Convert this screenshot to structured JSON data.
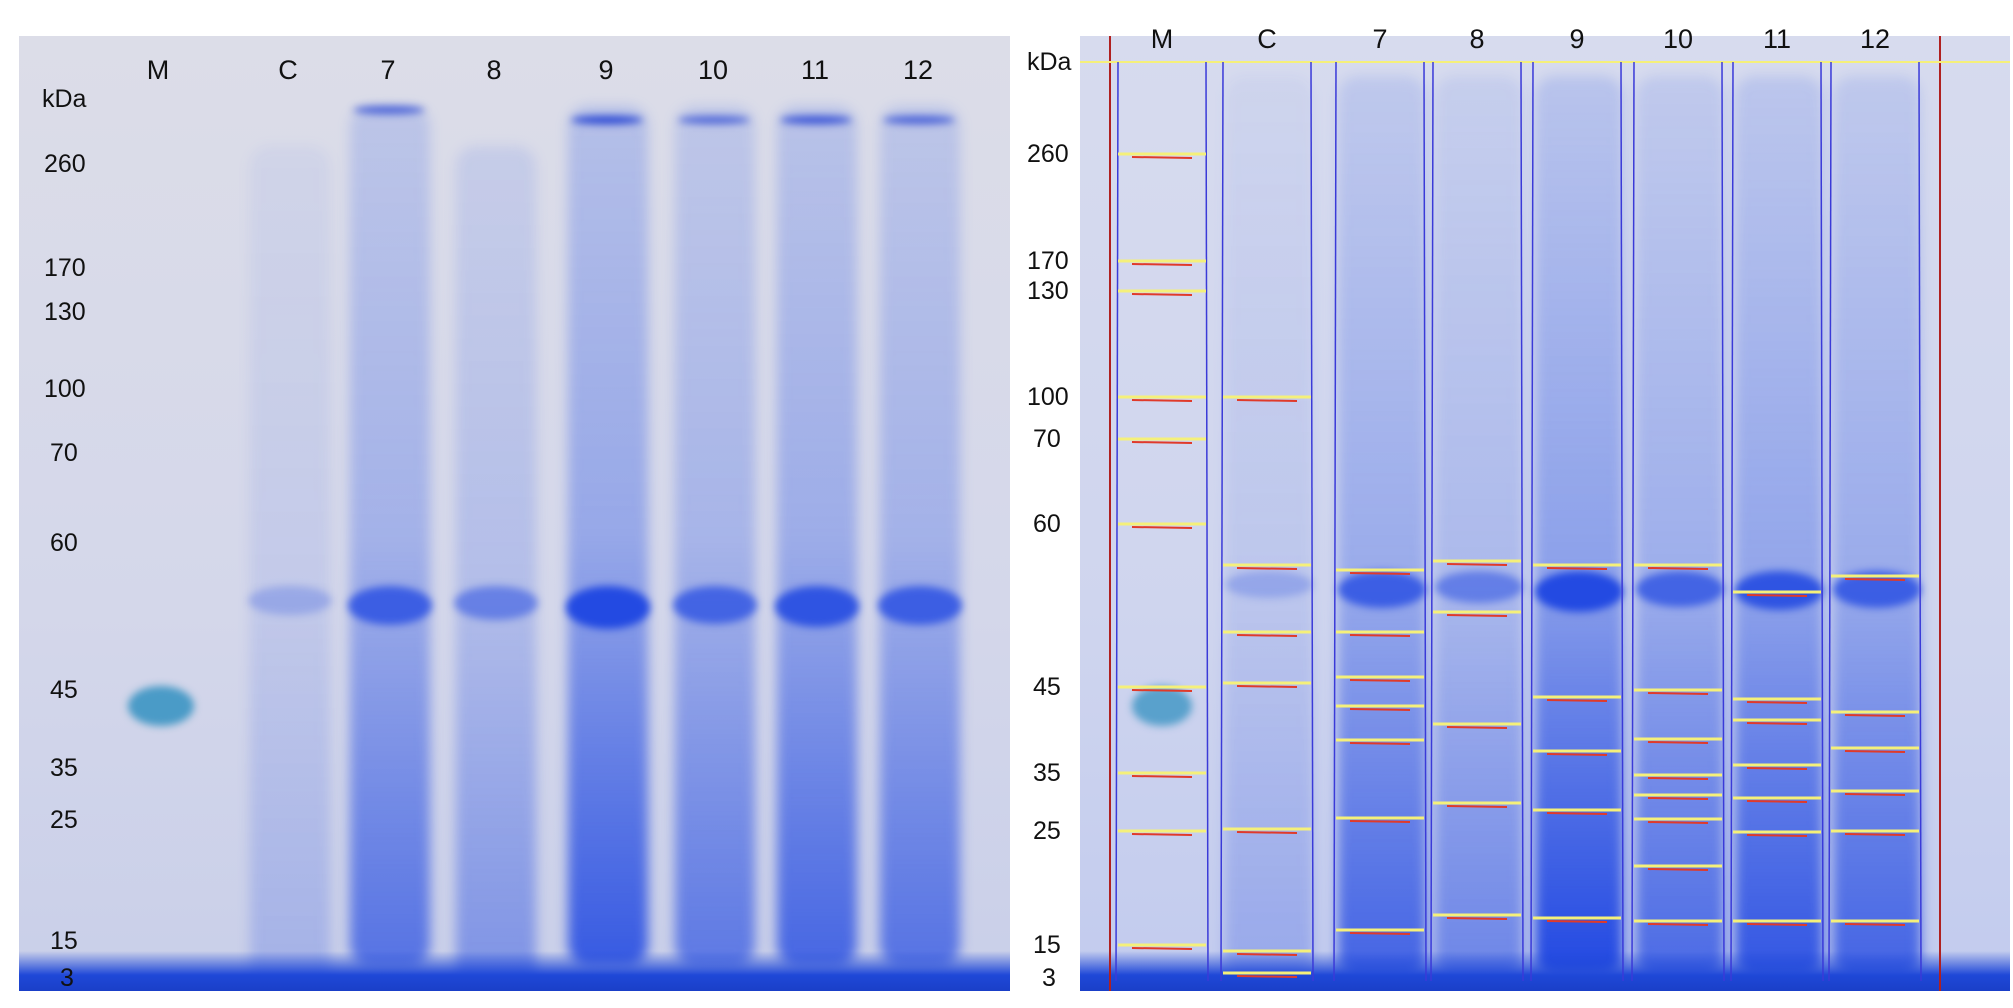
{
  "left_panel": {
    "unit": "kDa",
    "lanes": [
      "M",
      "C",
      "7",
      "8",
      "9",
      "10",
      "11",
      "12"
    ],
    "markers": [
      "260",
      "170",
      "130",
      "100",
      "70",
      "60",
      "45",
      "35",
      "25",
      "15",
      "3"
    ]
  },
  "right_panel": {
    "unit": "kDa",
    "lanes": [
      "M",
      "C",
      "7",
      "8",
      "9",
      "10",
      "11",
      "12"
    ],
    "markers": [
      "260",
      "170",
      "130",
      "100",
      "70",
      "60",
      "45",
      "35",
      "25",
      "15",
      "3"
    ]
  },
  "colors": {
    "stain": "#1f48d8",
    "detected_band": "#f5f07a",
    "band_trace": "#e03a2a",
    "lane_outline": "#3a3ad8",
    "frame": "#b02020"
  }
}
